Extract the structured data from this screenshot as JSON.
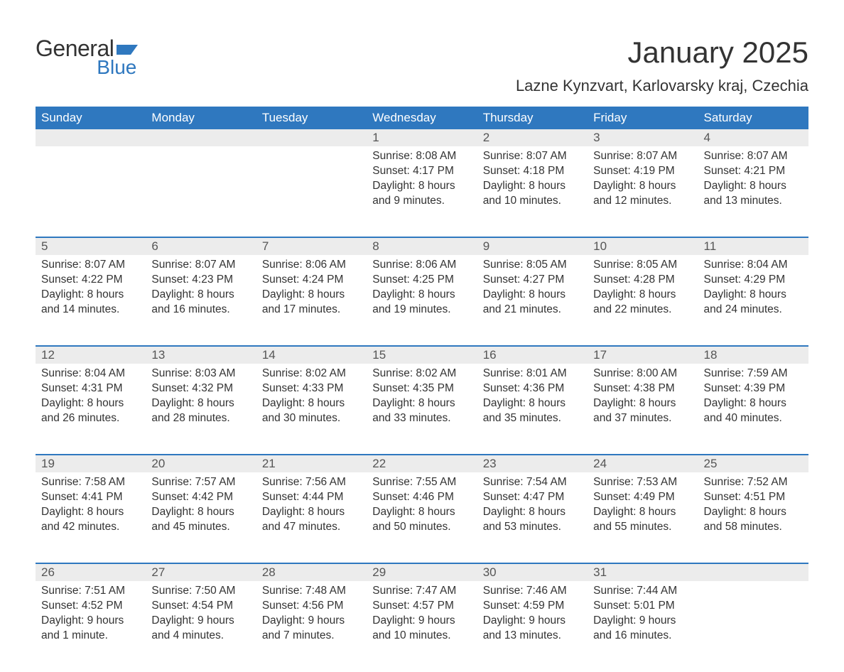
{
  "brand": {
    "word1": "General",
    "word2": "Blue",
    "accent_color": "#2f78bf"
  },
  "title": "January 2025",
  "location": "Lazne Kynzvart, Karlovarsky kraj, Czechia",
  "colors": {
    "header_bg": "#2f78bf",
    "header_text": "#ffffff",
    "daynum_bg": "#ececec",
    "row_border": "#2f78bf",
    "body_text": "#333333",
    "page_bg": "#ffffff"
  },
  "weekdays": [
    "Sunday",
    "Monday",
    "Tuesday",
    "Wednesday",
    "Thursday",
    "Friday",
    "Saturday"
  ],
  "weeks": [
    [
      null,
      null,
      null,
      {
        "n": "1",
        "sr": "Sunrise: 8:08 AM",
        "ss": "Sunset: 4:17 PM",
        "d1": "Daylight: 8 hours",
        "d2": "and 9 minutes."
      },
      {
        "n": "2",
        "sr": "Sunrise: 8:07 AM",
        "ss": "Sunset: 4:18 PM",
        "d1": "Daylight: 8 hours",
        "d2": "and 10 minutes."
      },
      {
        "n": "3",
        "sr": "Sunrise: 8:07 AM",
        "ss": "Sunset: 4:19 PM",
        "d1": "Daylight: 8 hours",
        "d2": "and 12 minutes."
      },
      {
        "n": "4",
        "sr": "Sunrise: 8:07 AM",
        "ss": "Sunset: 4:21 PM",
        "d1": "Daylight: 8 hours",
        "d2": "and 13 minutes."
      }
    ],
    [
      {
        "n": "5",
        "sr": "Sunrise: 8:07 AM",
        "ss": "Sunset: 4:22 PM",
        "d1": "Daylight: 8 hours",
        "d2": "and 14 minutes."
      },
      {
        "n": "6",
        "sr": "Sunrise: 8:07 AM",
        "ss": "Sunset: 4:23 PM",
        "d1": "Daylight: 8 hours",
        "d2": "and 16 minutes."
      },
      {
        "n": "7",
        "sr": "Sunrise: 8:06 AM",
        "ss": "Sunset: 4:24 PM",
        "d1": "Daylight: 8 hours",
        "d2": "and 17 minutes."
      },
      {
        "n": "8",
        "sr": "Sunrise: 8:06 AM",
        "ss": "Sunset: 4:25 PM",
        "d1": "Daylight: 8 hours",
        "d2": "and 19 minutes."
      },
      {
        "n": "9",
        "sr": "Sunrise: 8:05 AM",
        "ss": "Sunset: 4:27 PM",
        "d1": "Daylight: 8 hours",
        "d2": "and 21 minutes."
      },
      {
        "n": "10",
        "sr": "Sunrise: 8:05 AM",
        "ss": "Sunset: 4:28 PM",
        "d1": "Daylight: 8 hours",
        "d2": "and 22 minutes."
      },
      {
        "n": "11",
        "sr": "Sunrise: 8:04 AM",
        "ss": "Sunset: 4:29 PM",
        "d1": "Daylight: 8 hours",
        "d2": "and 24 minutes."
      }
    ],
    [
      {
        "n": "12",
        "sr": "Sunrise: 8:04 AM",
        "ss": "Sunset: 4:31 PM",
        "d1": "Daylight: 8 hours",
        "d2": "and 26 minutes."
      },
      {
        "n": "13",
        "sr": "Sunrise: 8:03 AM",
        "ss": "Sunset: 4:32 PM",
        "d1": "Daylight: 8 hours",
        "d2": "and 28 minutes."
      },
      {
        "n": "14",
        "sr": "Sunrise: 8:02 AM",
        "ss": "Sunset: 4:33 PM",
        "d1": "Daylight: 8 hours",
        "d2": "and 30 minutes."
      },
      {
        "n": "15",
        "sr": "Sunrise: 8:02 AM",
        "ss": "Sunset: 4:35 PM",
        "d1": "Daylight: 8 hours",
        "d2": "and 33 minutes."
      },
      {
        "n": "16",
        "sr": "Sunrise: 8:01 AM",
        "ss": "Sunset: 4:36 PM",
        "d1": "Daylight: 8 hours",
        "d2": "and 35 minutes."
      },
      {
        "n": "17",
        "sr": "Sunrise: 8:00 AM",
        "ss": "Sunset: 4:38 PM",
        "d1": "Daylight: 8 hours",
        "d2": "and 37 minutes."
      },
      {
        "n": "18",
        "sr": "Sunrise: 7:59 AM",
        "ss": "Sunset: 4:39 PM",
        "d1": "Daylight: 8 hours",
        "d2": "and 40 minutes."
      }
    ],
    [
      {
        "n": "19",
        "sr": "Sunrise: 7:58 AM",
        "ss": "Sunset: 4:41 PM",
        "d1": "Daylight: 8 hours",
        "d2": "and 42 minutes."
      },
      {
        "n": "20",
        "sr": "Sunrise: 7:57 AM",
        "ss": "Sunset: 4:42 PM",
        "d1": "Daylight: 8 hours",
        "d2": "and 45 minutes."
      },
      {
        "n": "21",
        "sr": "Sunrise: 7:56 AM",
        "ss": "Sunset: 4:44 PM",
        "d1": "Daylight: 8 hours",
        "d2": "and 47 minutes."
      },
      {
        "n": "22",
        "sr": "Sunrise: 7:55 AM",
        "ss": "Sunset: 4:46 PM",
        "d1": "Daylight: 8 hours",
        "d2": "and 50 minutes."
      },
      {
        "n": "23",
        "sr": "Sunrise: 7:54 AM",
        "ss": "Sunset: 4:47 PM",
        "d1": "Daylight: 8 hours",
        "d2": "and 53 minutes."
      },
      {
        "n": "24",
        "sr": "Sunrise: 7:53 AM",
        "ss": "Sunset: 4:49 PM",
        "d1": "Daylight: 8 hours",
        "d2": "and 55 minutes."
      },
      {
        "n": "25",
        "sr": "Sunrise: 7:52 AM",
        "ss": "Sunset: 4:51 PM",
        "d1": "Daylight: 8 hours",
        "d2": "and 58 minutes."
      }
    ],
    [
      {
        "n": "26",
        "sr": "Sunrise: 7:51 AM",
        "ss": "Sunset: 4:52 PM",
        "d1": "Daylight: 9 hours",
        "d2": "and 1 minute."
      },
      {
        "n": "27",
        "sr": "Sunrise: 7:50 AM",
        "ss": "Sunset: 4:54 PM",
        "d1": "Daylight: 9 hours",
        "d2": "and 4 minutes."
      },
      {
        "n": "28",
        "sr": "Sunrise: 7:48 AM",
        "ss": "Sunset: 4:56 PM",
        "d1": "Daylight: 9 hours",
        "d2": "and 7 minutes."
      },
      {
        "n": "29",
        "sr": "Sunrise: 7:47 AM",
        "ss": "Sunset: 4:57 PM",
        "d1": "Daylight: 9 hours",
        "d2": "and 10 minutes."
      },
      {
        "n": "30",
        "sr": "Sunrise: 7:46 AM",
        "ss": "Sunset: 4:59 PM",
        "d1": "Daylight: 9 hours",
        "d2": "and 13 minutes."
      },
      {
        "n": "31",
        "sr": "Sunrise: 7:44 AM",
        "ss": "Sunset: 5:01 PM",
        "d1": "Daylight: 9 hours",
        "d2": "and 16 minutes."
      },
      null
    ]
  ]
}
